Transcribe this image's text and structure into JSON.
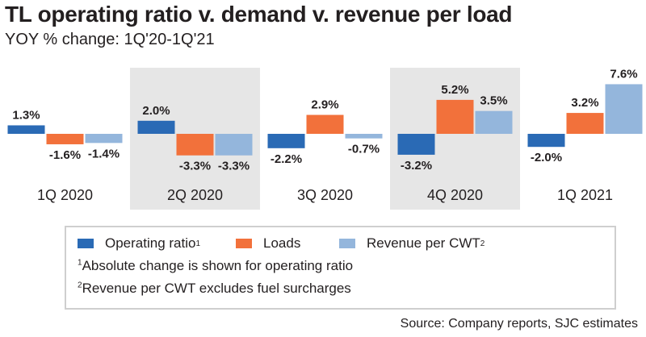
{
  "header": {
    "title": "TL operating ratio v. demand v. revenue per load",
    "subtitle": "YOY % change: 1Q'20-1Q'21"
  },
  "legend": {
    "items": [
      {
        "label": "Operating ratio",
        "sup": "1"
      },
      {
        "label": "Loads",
        "sup": ""
      },
      {
        "label": "Revenue per CWT",
        "sup": "2"
      }
    ],
    "notes": [
      {
        "sup": "1",
        "text": "Absolute change is shown for operating ratio"
      },
      {
        "sup": "2",
        "text": "Revenue per CWT excludes fuel surcharges"
      }
    ]
  },
  "source": "Source: Company reports, SJC estimates",
  "colors": {
    "operating_ratio": "#2a6ab5",
    "loads": "#f2713b",
    "revenue": "#94b6dc",
    "shade": "#e6e6e6"
  },
  "chart_data": {
    "type": "bar",
    "title": "TL operating ratio v. demand v. revenue per load",
    "subtitle": "YOY % change: 1Q'20-1Q'21",
    "categories": [
      "1Q 2020",
      "2Q 2020",
      "3Q 2020",
      "4Q 2020",
      "1Q 2021"
    ],
    "shaded": [
      false,
      true,
      false,
      true,
      false
    ],
    "series": [
      {
        "name": "Operating ratio",
        "values": [
          1.3,
          2.0,
          -2.2,
          -3.2,
          -2.0
        ]
      },
      {
        "name": "Loads",
        "values": [
          -1.6,
          -3.3,
          2.9,
          5.2,
          3.2
        ]
      },
      {
        "name": "Revenue per CWT",
        "values": [
          -1.4,
          -3.3,
          -0.7,
          3.5,
          7.6
        ]
      }
    ],
    "labels": [
      [
        "1.3%",
        "-1.6%",
        "-1.4%"
      ],
      [
        "2.0%",
        "-3.3%",
        "-3.3%"
      ],
      [
        "-2.2%",
        "2.9%",
        "-0.7%"
      ],
      [
        "-3.2%",
        "5.2%",
        "3.5%"
      ],
      [
        "-2.0%",
        "3.2%",
        "7.6%"
      ]
    ],
    "xlabel": "",
    "ylabel": "",
    "legend": "bottom",
    "grid": false
  }
}
